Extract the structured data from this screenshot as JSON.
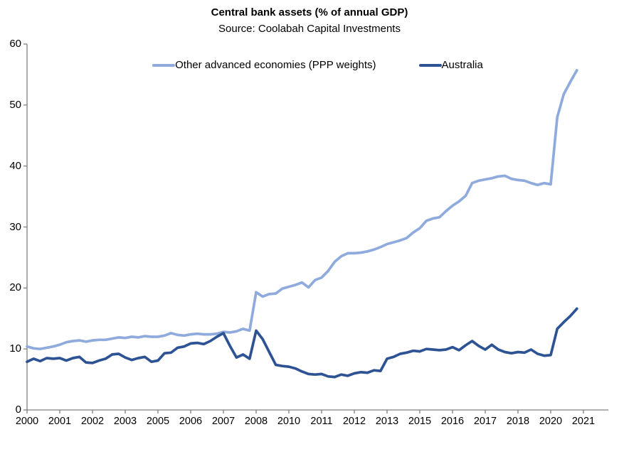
{
  "chart_data": {
    "type": "line",
    "title": "Central bank assets (% of annual GDP)",
    "subtitle": "Source: Coolabah Capital Investments",
    "x_frequency": "quarterly",
    "x_start": "2000Q1",
    "x_end": "2021Q1",
    "ylim": [
      0,
      60
    ],
    "yticks": [
      "0",
      "10",
      "20",
      "30",
      "40",
      "50",
      "60"
    ],
    "ytick_values": [
      0,
      10,
      20,
      30,
      40,
      50,
      60
    ],
    "x_tick_labels": [
      "2000",
      "2001",
      "2002",
      "2003",
      "2005",
      "2006",
      "2007",
      "2008",
      "2010",
      "2011",
      "2012",
      "2013",
      "2015",
      "2016",
      "2017",
      "2018",
      "2020",
      "2021"
    ],
    "x_tick_positions": [
      0,
      5,
      10,
      15,
      20,
      25,
      30,
      35,
      40,
      45,
      50,
      55,
      60,
      65,
      70,
      75,
      80,
      85
    ],
    "grid": false,
    "legend_position": "top-center",
    "axis_color": "#808080",
    "series": [
      {
        "name": "Other advanced economies (PPP weights)",
        "color": "#8FAADC",
        "values": [
          10.4,
          10.1,
          10.0,
          10.2,
          10.4,
          10.7,
          11.1,
          11.3,
          11.4,
          11.2,
          11.4,
          11.5,
          11.5,
          11.7,
          11.9,
          11.8,
          12.0,
          11.9,
          12.1,
          12.0,
          12.0,
          12.2,
          12.6,
          12.3,
          12.2,
          12.4,
          12.5,
          12.4,
          12.4,
          12.5,
          12.8,
          12.7,
          12.9,
          13.3,
          13.0,
          19.3,
          18.6,
          19.0,
          19.1,
          19.9,
          20.2,
          20.5,
          20.9,
          20.1,
          21.3,
          21.7,
          22.8,
          24.3,
          25.2,
          25.7,
          25.7,
          25.8,
          26.0,
          26.3,
          26.7,
          27.2,
          27.5,
          27.8,
          28.2,
          29.1,
          29.8,
          31.0,
          31.4,
          31.6,
          32.6,
          33.5,
          34.2,
          35.1,
          37.2,
          37.6,
          37.8,
          38.0,
          38.3,
          38.4,
          37.9,
          37.7,
          37.6,
          37.2,
          36.9,
          37.2,
          37.0,
          48.0,
          51.8,
          53.8,
          55.7
        ]
      },
      {
        "name": "Australia",
        "color": "#2E5394",
        "values": [
          7.9,
          8.4,
          8.0,
          8.5,
          8.4,
          8.5,
          8.1,
          8.5,
          8.7,
          7.8,
          7.7,
          8.1,
          8.4,
          9.1,
          9.2,
          8.6,
          8.2,
          8.5,
          8.7,
          7.9,
          8.1,
          9.3,
          9.4,
          10.2,
          10.4,
          10.9,
          11.0,
          10.8,
          11.3,
          12.0,
          12.6,
          10.5,
          8.6,
          9.1,
          8.4,
          13.0,
          11.6,
          9.5,
          7.4,
          7.2,
          7.1,
          6.8,
          6.3,
          5.9,
          5.8,
          5.9,
          5.5,
          5.4,
          5.8,
          5.6,
          6.0,
          6.2,
          6.1,
          6.5,
          6.4,
          8.4,
          8.7,
          9.2,
          9.4,
          9.7,
          9.6,
          10.0,
          9.9,
          9.8,
          9.9,
          10.3,
          9.8,
          10.6,
          11.3,
          10.5,
          9.9,
          10.7,
          9.9,
          9.5,
          9.3,
          9.5,
          9.4,
          9.9,
          9.2,
          8.9,
          9.0,
          13.3,
          14.4,
          15.4,
          16.6
        ]
      }
    ]
  }
}
